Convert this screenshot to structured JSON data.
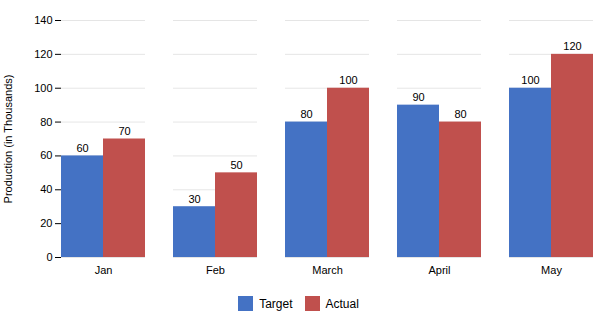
{
  "chart_data": {
    "type": "bar",
    "categories": [
      "Jan",
      "Feb",
      "March",
      "April",
      "May"
    ],
    "series": [
      {
        "name": "Target",
        "color": "#4472C4",
        "values": [
          60,
          30,
          80,
          90,
          100
        ]
      },
      {
        "name": "Actual",
        "color": "#C0504D",
        "values": [
          70,
          50,
          100,
          80,
          120
        ]
      }
    ],
    "ylabel": "Production (in Thousands)",
    "ylim": [
      0,
      140
    ],
    "yticks": [
      0,
      20,
      40,
      60,
      80,
      100,
      120,
      140
    ],
    "grid": true,
    "data_labels": true,
    "legend": "bottom"
  }
}
